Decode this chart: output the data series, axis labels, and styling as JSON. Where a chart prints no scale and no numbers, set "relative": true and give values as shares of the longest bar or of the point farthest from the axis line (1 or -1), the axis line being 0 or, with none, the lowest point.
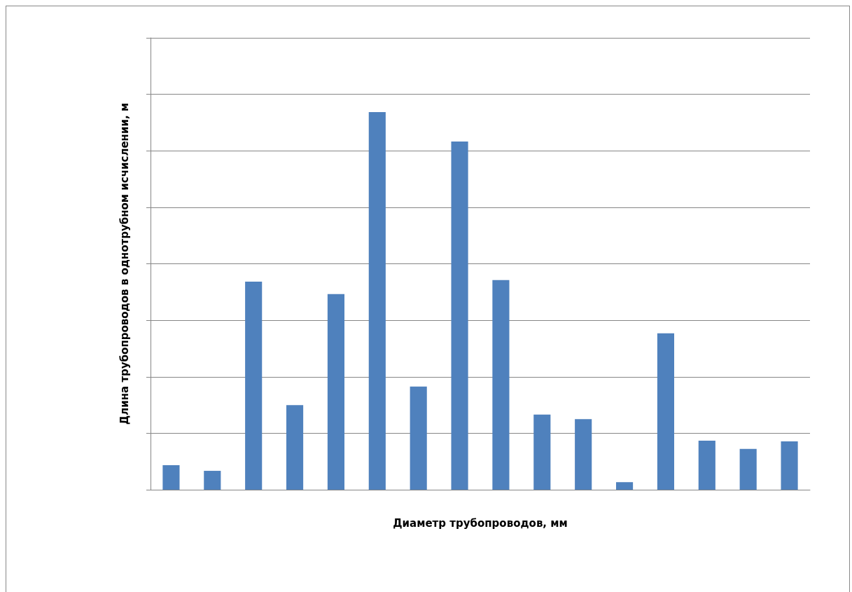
{
  "chart_data": {
    "type": "bar",
    "relative": true,
    "xlabel": "Диаметр трубопроводов, мм",
    "ylabel": "Длина трубопроводов в однотрубном исчислении, м",
    "categories": [
      null,
      null,
      null,
      null,
      null,
      null,
      null,
      null,
      null,
      null,
      null,
      null,
      null,
      null,
      null,
      null
    ],
    "values": [
      0.065,
      0.05,
      0.551,
      0.224,
      0.518,
      1,
      0.273,
      0.922,
      0.555,
      0.199,
      0.187,
      0.02,
      0.414,
      0.13,
      0.108,
      0.128
    ],
    "color": "#4f81bd",
    "grid": "y"
  }
}
